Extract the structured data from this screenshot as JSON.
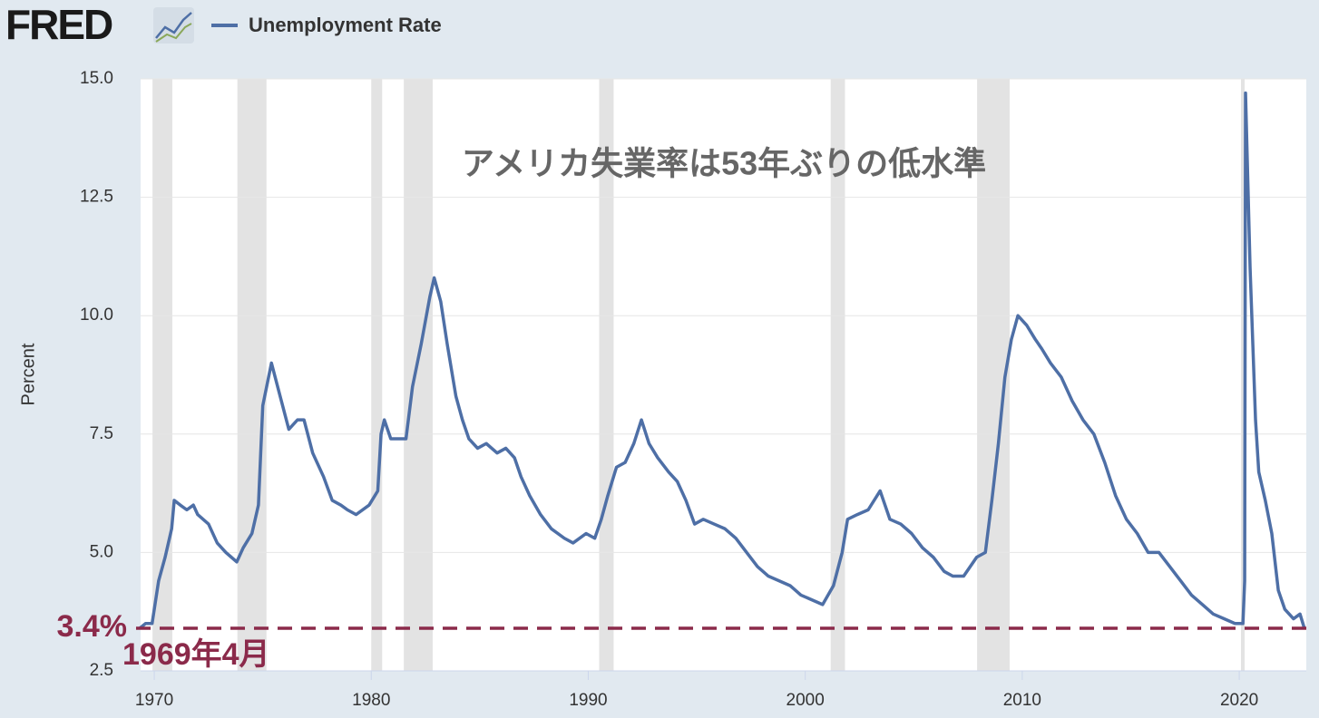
{
  "logo": "FRED",
  "chart_data": {
    "type": "line",
    "title": "アメリカ失業率は53年ぶりの低水準",
    "ylabel": "Percent",
    "x": [
      1969.33,
      1969.6,
      1969.9,
      1970.2,
      1970.5,
      1970.8,
      1970.92,
      1971.2,
      1971.5,
      1971.8,
      1972.0,
      1972.5,
      1972.9,
      1973.3,
      1973.8,
      1974.1,
      1974.5,
      1974.8,
      1975.0,
      1975.4,
      1975.8,
      1976.2,
      1976.6,
      1976.9,
      1977.3,
      1977.8,
      1978.2,
      1978.6,
      1978.9,
      1979.3,
      1979.9,
      1980.3,
      1980.45,
      1980.6,
      1980.9,
      1981.3,
      1981.6,
      1981.9,
      1982.3,
      1982.7,
      1982.9,
      1983.2,
      1983.5,
      1983.9,
      1984.2,
      1984.5,
      1984.9,
      1985.3,
      1985.8,
      1986.2,
      1986.6,
      1986.9,
      1987.3,
      1987.8,
      1988.3,
      1988.9,
      1989.3,
      1989.9,
      1990.3,
      1990.6,
      1990.9,
      1991.3,
      1991.7,
      1992.1,
      1992.45,
      1992.8,
      1993.2,
      1993.7,
      1994.1,
      1994.5,
      1994.9,
      1995.3,
      1995.8,
      1996.3,
      1996.8,
      1997.3,
      1997.8,
      1998.3,
      1998.8,
      1999.3,
      1999.8,
      2000.3,
      2000.8,
      2001.3,
      2001.7,
      2001.95,
      2002.4,
      2002.9,
      2003.45,
      2003.9,
      2004.4,
      2004.9,
      2005.4,
      2005.9,
      2006.4,
      2006.8,
      2007.3,
      2007.9,
      2008.3,
      2008.6,
      2008.9,
      2009.2,
      2009.5,
      2009.8,
      2010.2,
      2010.6,
      2010.9,
      2011.3,
      2011.8,
      2012.3,
      2012.8,
      2013.3,
      2013.8,
      2014.3,
      2014.8,
      2015.3,
      2015.8,
      2016.3,
      2016.8,
      2017.3,
      2017.8,
      2018.3,
      2018.8,
      2019.3,
      2019.8,
      2020.17,
      2020.25,
      2020.29,
      2020.5,
      2020.75,
      2020.9,
      2021.2,
      2021.5,
      2021.8,
      2022.1,
      2022.5,
      2022.8,
      2023.0
    ],
    "series": [
      {
        "name": "Unemployment Rate",
        "color": "#4e6fa6",
        "values": [
          3.4,
          3.5,
          3.5,
          4.4,
          4.9,
          5.5,
          6.1,
          6.0,
          5.9,
          6.0,
          5.8,
          5.6,
          5.2,
          5.0,
          4.8,
          5.1,
          5.4,
          6.0,
          8.1,
          9.0,
          8.3,
          7.6,
          7.8,
          7.8,
          7.1,
          6.6,
          6.1,
          6.0,
          5.9,
          5.8,
          6.0,
          6.3,
          7.5,
          7.8,
          7.4,
          7.4,
          7.4,
          8.5,
          9.4,
          10.4,
          10.8,
          10.3,
          9.4,
          8.3,
          7.8,
          7.4,
          7.2,
          7.3,
          7.1,
          7.2,
          7.0,
          6.6,
          6.2,
          5.8,
          5.5,
          5.3,
          5.2,
          5.4,
          5.3,
          5.7,
          6.2,
          6.8,
          6.9,
          7.3,
          7.8,
          7.3,
          7.0,
          6.7,
          6.5,
          6.1,
          5.6,
          5.7,
          5.6,
          5.5,
          5.3,
          5.0,
          4.7,
          4.5,
          4.4,
          4.3,
          4.1,
          4.0,
          3.9,
          4.3,
          5.0,
          5.7,
          5.8,
          5.9,
          6.3,
          5.7,
          5.6,
          5.4,
          5.1,
          4.9,
          4.6,
          4.5,
          4.5,
          4.9,
          5.0,
          6.1,
          7.3,
          8.7,
          9.5,
          10.0,
          9.8,
          9.5,
          9.3,
          9.0,
          8.7,
          8.2,
          7.8,
          7.5,
          6.9,
          6.2,
          5.7,
          5.4,
          5.0,
          5.0,
          4.7,
          4.4,
          4.1,
          3.9,
          3.7,
          3.6,
          3.5,
          3.5,
          4.4,
          14.7,
          11.0,
          7.8,
          6.7,
          6.1,
          5.4,
          4.2,
          3.8,
          3.6,
          3.7,
          3.4
        ]
      }
    ],
    "recessions": [
      [
        1969.92,
        1970.83
      ],
      [
        1973.83,
        1975.17
      ],
      [
        1980.0,
        1980.5
      ],
      [
        1981.5,
        1982.83
      ],
      [
        1990.5,
        1991.17
      ],
      [
        2001.17,
        2001.83
      ],
      [
        2007.92,
        2009.42
      ],
      [
        2020.08,
        2020.25
      ]
    ],
    "reference_line": {
      "value": 3.4,
      "label": "3.4%",
      "note": "1969年4月",
      "color": "#8b2a4a"
    },
    "xlim": [
      1969.37,
      2023.09
    ],
    "xticks": [
      1970,
      1980,
      1990,
      2000,
      2010,
      2020
    ],
    "ylim": [
      2.5,
      15
    ],
    "yticks": [
      2.5,
      {
        "value": 5,
        "label": "5.0"
      },
      7.5,
      {
        "value": 10,
        "label": "10.0"
      },
      12.5,
      {
        "value": 15,
        "label": "15.0"
      }
    ],
    "grid": true
  }
}
